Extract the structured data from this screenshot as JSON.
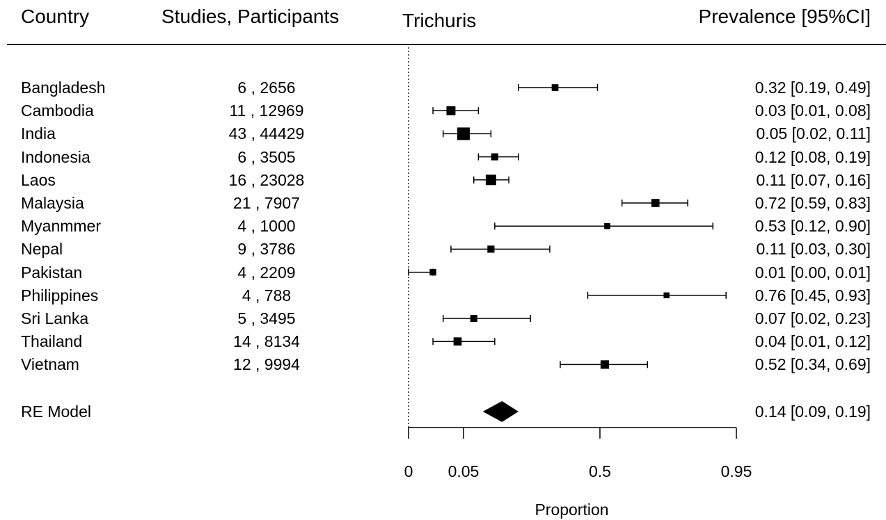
{
  "headers": {
    "country": "Country",
    "studies": "Studies, Participants",
    "pathogen": "Trichuris",
    "prevalence": "Prevalence [95%CI]"
  },
  "chart_data": {
    "type": "forest",
    "xlabel": "Proportion",
    "x_ticks": [
      "0",
      "0.05",
      "0.5",
      "0.95"
    ],
    "x_scale": "arcsine square root",
    "rows": [
      {
        "country": "Bangladesh",
        "studies_participants": "6 , 2656",
        "prevalence": "0.32 [0.19, 0.49]",
        "est": 0.32,
        "lo": 0.19,
        "hi": 0.49
      },
      {
        "country": "Cambodia",
        "studies_participants": "11 , 12969",
        "prevalence": "0.03 [0.01, 0.08]",
        "est": 0.03,
        "lo": 0.01,
        "hi": 0.08
      },
      {
        "country": "India",
        "studies_participants": "43 , 44429",
        "prevalence": "0.05 [0.02, 0.11]",
        "est": 0.05,
        "lo": 0.02,
        "hi": 0.11
      },
      {
        "country": "Indonesia",
        "studies_participants": "6 , 3505",
        "prevalence": "0.12 [0.08, 0.19]",
        "est": 0.12,
        "lo": 0.08,
        "hi": 0.19
      },
      {
        "country": "Laos",
        "studies_participants": "16 , 23028",
        "prevalence": "0.11 [0.07, 0.16]",
        "est": 0.11,
        "lo": 0.07,
        "hi": 0.16
      },
      {
        "country": "Malaysia",
        "studies_participants": "21 , 7907",
        "prevalence": "0.72 [0.59, 0.83]",
        "est": 0.72,
        "lo": 0.59,
        "hi": 0.83
      },
      {
        "country": "Myanmmer",
        "studies_participants": "4 , 1000",
        "prevalence": "0.53 [0.12, 0.90]",
        "est": 0.53,
        "lo": 0.12,
        "hi": 0.9
      },
      {
        "country": "Nepal",
        "studies_participants": "9 , 3786",
        "prevalence": "0.11 [0.03, 0.30]",
        "est": 0.11,
        "lo": 0.03,
        "hi": 0.3
      },
      {
        "country": "Pakistan",
        "studies_participants": "4 , 2209",
        "prevalence": "0.01 [0.00, 0.01]",
        "est": 0.01,
        "lo": 0.0,
        "hi": 0.01
      },
      {
        "country": "Philippines",
        "studies_participants": "4 , 788",
        "prevalence": "0.76 [0.45, 0.93]",
        "est": 0.76,
        "lo": 0.45,
        "hi": 0.93
      },
      {
        "country": "Sri Lanka",
        "studies_participants": "5 , 3495",
        "prevalence": "0.07 [0.02, 0.23]",
        "est": 0.07,
        "lo": 0.02,
        "hi": 0.23
      },
      {
        "country": "Thailand",
        "studies_participants": "14 , 8134",
        "prevalence": "0.04 [0.01, 0.12]",
        "est": 0.04,
        "lo": 0.01,
        "hi": 0.12
      },
      {
        "country": "Vietnam",
        "studies_participants": "12 , 9994",
        "prevalence": "0.52 [0.34, 0.69]",
        "est": 0.52,
        "lo": 0.34,
        "hi": 0.69
      }
    ],
    "summary": {
      "label": "RE Model",
      "prevalence": "0.14 [0.09, 0.19]",
      "est": 0.14,
      "lo": 0.09,
      "hi": 0.19
    }
  }
}
